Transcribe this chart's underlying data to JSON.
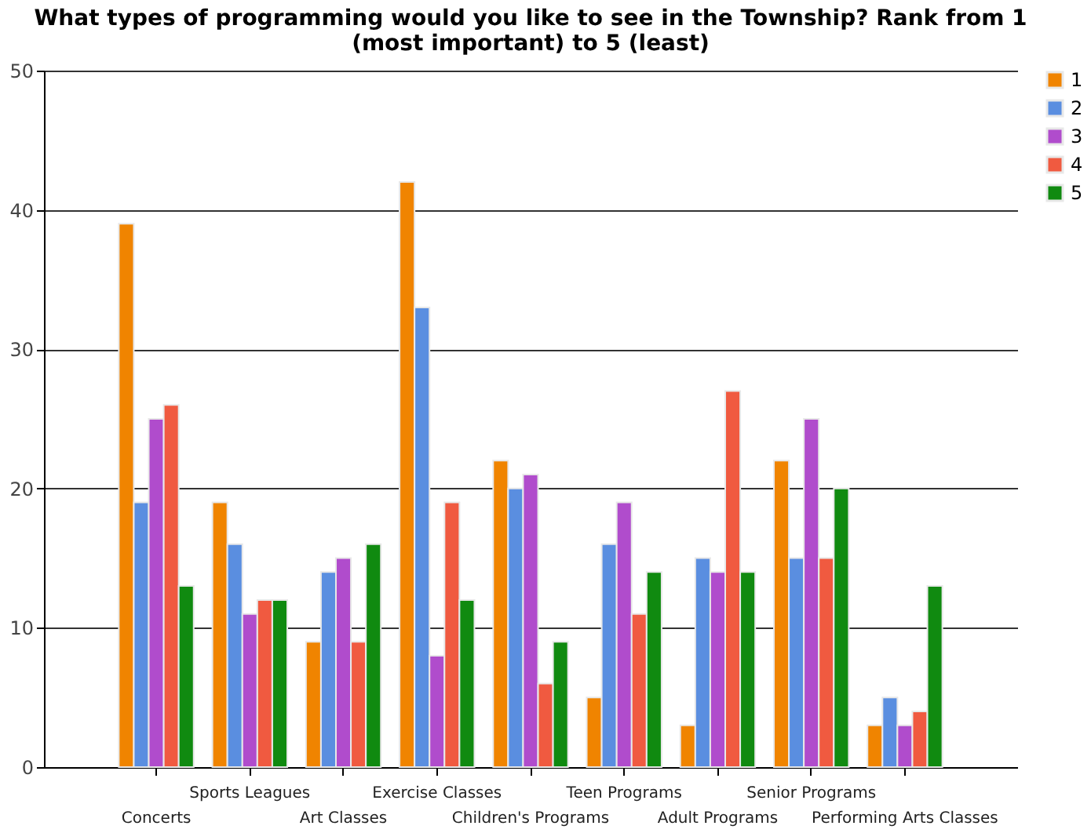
{
  "chart_data": {
    "type": "bar",
    "title": "What types of programming would you like to see in the Township? Rank from 1 (most important) to 5 (least)",
    "categories": [
      "Concerts",
      "Sports Leagues",
      "Art Classes",
      "Exercise Classes",
      "Children's Programs",
      "Teen Programs",
      "Adult Programs",
      "Senior Programs",
      "Performing Arts Classes"
    ],
    "series": [
      {
        "name": "1",
        "color": "#f08400",
        "values": [
          39,
          19,
          9,
          42,
          22,
          5,
          3,
          22,
          3
        ]
      },
      {
        "name": "2",
        "color": "#5a8ee0",
        "values": [
          19,
          16,
          14,
          33,
          20,
          16,
          15,
          15,
          5
        ]
      },
      {
        "name": "3",
        "color": "#b04ccc",
        "values": [
          25,
          11,
          15,
          8,
          21,
          19,
          14,
          25,
          3
        ]
      },
      {
        "name": "4",
        "color": "#f05a40",
        "values": [
          26,
          12,
          9,
          19,
          6,
          11,
          27,
          15,
          4
        ]
      },
      {
        "name": "5",
        "color": "#108a10",
        "values": [
          13,
          12,
          16,
          12,
          9,
          14,
          14,
          20,
          13
        ]
      }
    ],
    "ylim": [
      0,
      50
    ],
    "yticks": [
      0,
      10,
      20,
      30,
      40,
      50
    ],
    "grid": "y",
    "legend": "right"
  }
}
